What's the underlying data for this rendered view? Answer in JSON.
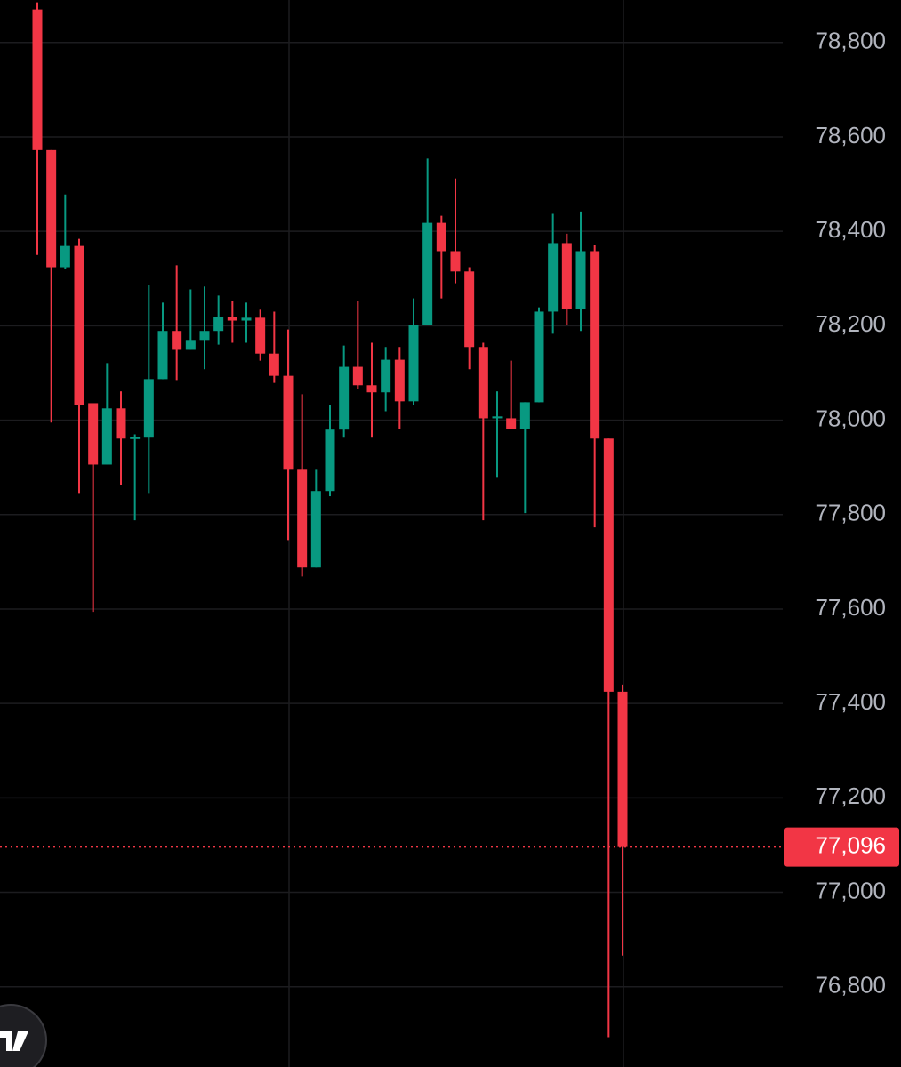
{
  "chart_data": {
    "type": "candlestick",
    "ylim": [
      76630,
      78890
    ],
    "yticks": [
      {
        "value": 78800,
        "label": "78,800"
      },
      {
        "value": 78600,
        "label": "78,600"
      },
      {
        "value": 78400,
        "label": "78,400"
      },
      {
        "value": 78200,
        "label": "78,200"
      },
      {
        "value": 78000,
        "label": "78,000"
      },
      {
        "value": 77800,
        "label": "77,800"
      },
      {
        "value": 77600,
        "label": "77,600"
      },
      {
        "value": 77400,
        "label": "77,400"
      },
      {
        "value": 77200,
        "label": "77,200"
      },
      {
        "value": 77000,
        "label": "77,000"
      },
      {
        "value": 76800,
        "label": "76,800"
      }
    ],
    "grid": true,
    "up_color": "#089981",
    "down_color": "#f23645",
    "open": [
      78870,
      78572,
      78324,
      78369,
      78036,
      77906,
      78025,
      77960,
      77963,
      78087,
      78189,
      78149,
      78170,
      78189,
      78219,
      78211,
      78217,
      78141,
      78094,
      77895,
      77688,
      77850,
      77980,
      78113,
      78074,
      78059,
      78128,
      78040,
      78202,
      78418,
      78358,
      78315,
      78155,
      78004,
      78004,
      77982,
      78038,
      78230,
      78375,
      78236,
      78358,
      77961,
      77425
    ],
    "high": [
      78885,
      78572,
      78478,
      78384,
      78036,
      78121,
      78061,
      77970,
      78286,
      78249,
      78328,
      78277,
      78283,
      78264,
      78252,
      78249,
      78234,
      78230,
      78192,
      78055,
      77895,
      78032,
      78158,
      78252,
      78164,
      78155,
      78155,
      78258,
      78554,
      78433,
      78512,
      78324,
      78164,
      78061,
      78126,
      78038,
      78239,
      78437,
      78395,
      78442,
      78371,
      77961,
      77440
    ],
    "low": [
      78350,
      77995,
      78320,
      77844,
      77594,
      77906,
      77863,
      77788,
      77844,
      78087,
      78085,
      78149,
      78108,
      78160,
      78164,
      78164,
      78126,
      78079,
      77746,
      77669,
      77688,
      77839,
      77963,
      78066,
      77963,
      78019,
      77982,
      78032,
      78202,
      78258,
      78290,
      78108,
      77788,
      77878,
      77982,
      77803,
      78038,
      78183,
      78202,
      78189,
      77773,
      76693,
      76866
    ],
    "close": [
      78572,
      78324,
      78369,
      78032,
      77906,
      78025,
      77961,
      77965,
      78087,
      78189,
      78149,
      78170,
      78189,
      78219,
      78211,
      78217,
      78141,
      78094,
      77895,
      77688,
      77850,
      77980,
      78113,
      78074,
      78059,
      78128,
      78040,
      78202,
      78418,
      78358,
      78315,
      78155,
      78004,
      78008,
      77982,
      78038,
      78230,
      78375,
      78236,
      78358,
      77961,
      77425,
      77096
    ],
    "last_price": {
      "value": 77096,
      "label": "77,096"
    }
  }
}
